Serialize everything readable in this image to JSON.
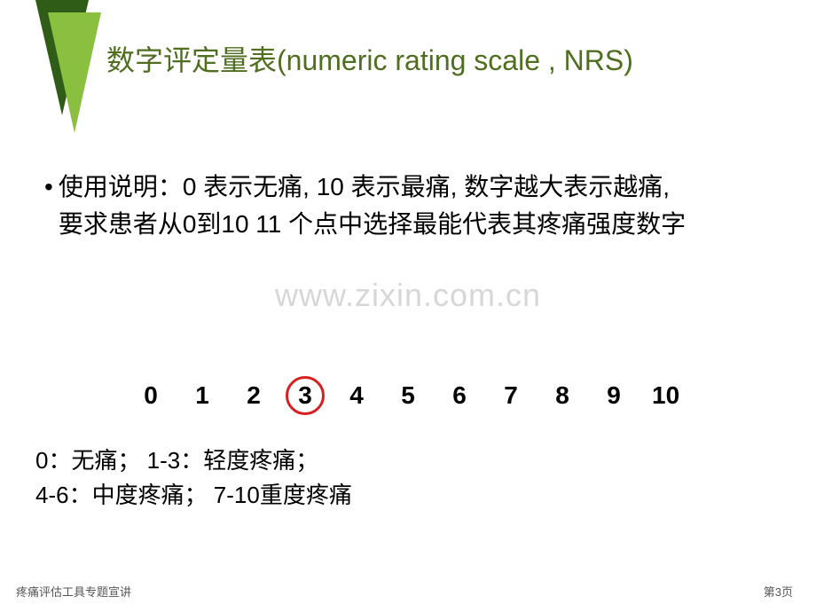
{
  "title": {
    "text": "数字评定量表(numeric rating scale , NRS)",
    "color": "#4f6e1f",
    "fontsize": 32
  },
  "triangles": {
    "dark_color": "#2f5d18",
    "light_color": "#8bbf3f"
  },
  "description": {
    "bullet": "•",
    "text": "使用说明：0 表示无痛, 10 表示最痛, 数字越大表示越痛, 要求患者从0到10 11 个点中选择最能代表其疼痛强度数字",
    "color": "#000000",
    "fontsize": 28
  },
  "watermark": {
    "text": "www.zixin.com.cn",
    "color": "#d7d7d7",
    "fontsize": 36
  },
  "scale": {
    "numbers": [
      "0",
      "1",
      "2",
      "3",
      "4",
      "5",
      "6",
      "7",
      "8",
      "9",
      "10"
    ],
    "fontsize": 28,
    "color": "#000000",
    "circled_index": 3,
    "circle_color": "#d81f1f",
    "circle_border_width": 3,
    "circle_diameter": 44
  },
  "legend": {
    "line1": "0：无痛；  1-3：轻度疼痛；",
    "line2": "4-6：中度疼痛；  7-10重度疼痛",
    "color": "#000000",
    "fontsize": 26
  },
  "footer": {
    "left": "疼痛评估工具专题宣讲",
    "right": "第3页",
    "color": "#555555",
    "fontsize": 13
  }
}
